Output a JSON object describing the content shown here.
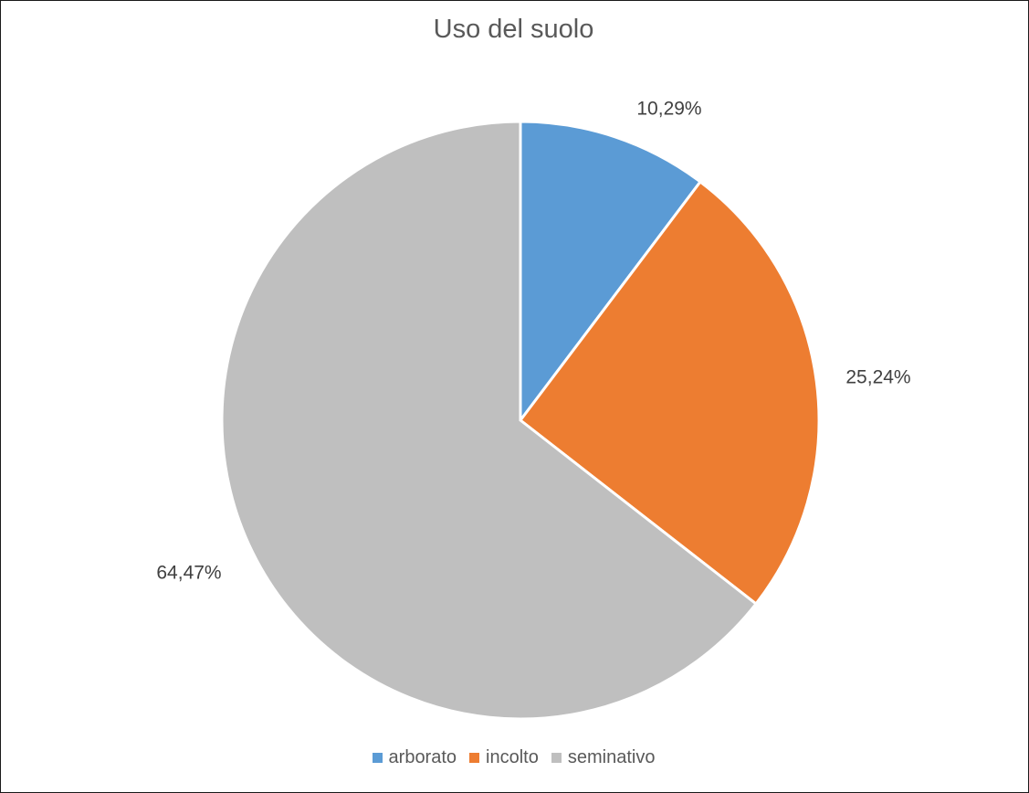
{
  "chart_data": {
    "type": "pie",
    "title": "Uso del suolo",
    "categories": [
      "arborato",
      "incolto",
      "seminativo"
    ],
    "values": [
      10.29,
      25.24,
      64.47
    ],
    "labels": [
      "10,29%",
      "25,24%",
      "64,47%"
    ],
    "colors": [
      "#5B9BD5",
      "#ED7D31",
      "#BFBFBF"
    ],
    "start_angle": "12 o'clock, clockwise",
    "legend_position": "bottom"
  }
}
